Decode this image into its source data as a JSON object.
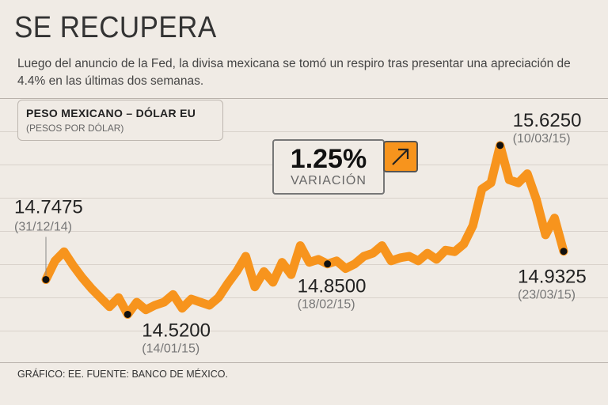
{
  "title": "SE RECUPERA",
  "subtitle": "Luego del anuncio de la Fed, la divisa mexicana se tomó un respiro tras presentar una apreciación de 4.4% en las últimas dos semanas.",
  "legend": {
    "title": "PESO MEXICANO – DÓLAR EU",
    "sub": "(PESOS POR DÓLAR)"
  },
  "variation": {
    "value": "1.25%",
    "label": "VARIACIÓN",
    "icon": "arrow-up-right-icon"
  },
  "source": "GRÁFICO: EE. FUENTE: BANCO DE MÉXICO.",
  "colors": {
    "line": "#f7941d",
    "background": "#f0ebe5",
    "point": "#111111"
  },
  "chart_data": {
    "type": "line",
    "title": "PESO MEXICANO – DÓLAR EU",
    "ylabel": "(PESOS POR DÓLAR)",
    "xlabel": "",
    "ylim": [
      14.3,
      15.8
    ],
    "grid": true,
    "series": [
      {
        "name": "Peso mexicano – dólar EU",
        "values": [
          14.7475,
          14.87,
          14.93,
          14.84,
          14.76,
          14.69,
          14.63,
          14.57,
          14.63,
          14.52,
          14.6,
          14.55,
          14.58,
          14.6,
          14.65,
          14.56,
          14.62,
          14.6,
          14.58,
          14.63,
          14.72,
          14.8,
          14.9,
          14.7,
          14.8,
          14.73,
          14.86,
          14.78,
          14.97,
          14.86,
          14.88,
          14.85,
          14.87,
          14.82,
          14.85,
          14.9,
          14.92,
          14.97,
          14.87,
          14.89,
          14.9,
          14.87,
          14.92,
          14.88,
          14.94,
          14.93,
          14.98,
          15.1,
          15.34,
          15.38,
          15.625,
          15.4,
          15.38,
          15.44,
          15.27,
          15.04,
          15.15,
          14.9325
        ]
      }
    ],
    "annotations": [
      {
        "index": 0,
        "value": "14.7475",
        "date": "(31/12/14)"
      },
      {
        "index": 9,
        "value": "14.5200",
        "date": "(14/01/15)"
      },
      {
        "index": 31,
        "value": "14.8500",
        "date": "(18/02/15)"
      },
      {
        "index": 50,
        "value": "15.6250",
        "date": "(10/03/15)"
      },
      {
        "index": 57,
        "value": "14.9325",
        "date": "(23/03/15)"
      }
    ]
  }
}
